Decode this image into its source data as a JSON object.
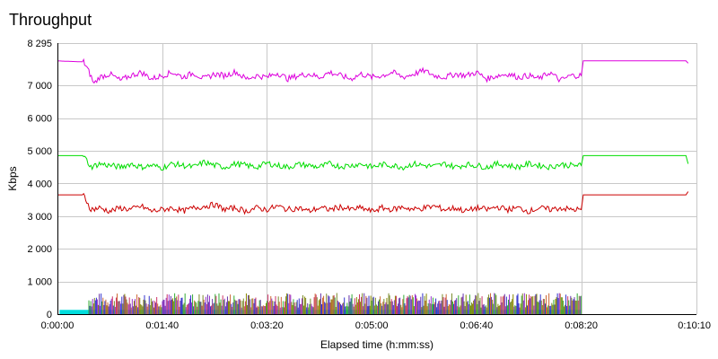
{
  "chart_data": {
    "type": "line",
    "title": "Throughput",
    "xlabel": "Elapsed time (h:mm:ss)",
    "ylabel": "Kbps",
    "x_unit": "seconds",
    "xlim": [
      0,
      610
    ],
    "ylim": [
      0,
      8295
    ],
    "x_ticks": [
      {
        "value": 0,
        "label": "0:00:00"
      },
      {
        "value": 100,
        "label": "0:01:40"
      },
      {
        "value": 200,
        "label": "0:03:20"
      },
      {
        "value": 300,
        "label": "0:05:00"
      },
      {
        "value": 400,
        "label": "0:06:40"
      },
      {
        "value": 500,
        "label": "0:08:20"
      },
      {
        "value": 610,
        "label": "0:10:10"
      }
    ],
    "y_ticks": [
      {
        "value": 0,
        "label": "0"
      },
      {
        "value": 1000,
        "label": "1 000"
      },
      {
        "value": 2000,
        "label": "2 000"
      },
      {
        "value": 3000,
        "label": "3 000"
      },
      {
        "value": 4000,
        "label": "4 000"
      },
      {
        "value": 5000,
        "label": "5 000"
      },
      {
        "value": 6000,
        "label": "6 000"
      },
      {
        "value": 7000,
        "label": "7 000"
      },
      {
        "value": 8295,
        "label": "8 295"
      }
    ],
    "grid": true,
    "legend": "none",
    "series": [
      {
        "color": "#dd00dd",
        "points": [
          [
            0,
            7750
          ],
          [
            25,
            7720
          ],
          [
            28,
            7550
          ],
          [
            31,
            7350
          ],
          [
            35,
            7050
          ],
          [
            40,
            7250
          ],
          [
            50,
            7350
          ],
          [
            60,
            7150
          ],
          [
            70,
            7300
          ],
          [
            80,
            7400
          ],
          [
            90,
            7200
          ],
          [
            100,
            7300
          ],
          [
            110,
            7400
          ],
          [
            120,
            7250
          ],
          [
            130,
            7380
          ],
          [
            140,
            7200
          ],
          [
            150,
            7350
          ],
          [
            160,
            7300
          ],
          [
            170,
            7420
          ],
          [
            180,
            7200
          ],
          [
            190,
            7300
          ],
          [
            200,
            7250
          ],
          [
            210,
            7380
          ],
          [
            220,
            7200
          ],
          [
            230,
            7300
          ],
          [
            240,
            7350
          ],
          [
            250,
            7250
          ],
          [
            260,
            7400
          ],
          [
            270,
            7300
          ],
          [
            280,
            7200
          ],
          [
            290,
            7350
          ],
          [
            300,
            7250
          ],
          [
            310,
            7300
          ],
          [
            320,
            7400
          ],
          [
            330,
            7250
          ],
          [
            340,
            7350
          ],
          [
            350,
            7450
          ],
          [
            360,
            7300
          ],
          [
            370,
            7250
          ],
          [
            380,
            7350
          ],
          [
            390,
            7300
          ],
          [
            400,
            7400
          ],
          [
            410,
            7200
          ],
          [
            420,
            7300
          ],
          [
            430,
            7350
          ],
          [
            440,
            7250
          ],
          [
            450,
            7300
          ],
          [
            460,
            7200
          ],
          [
            470,
            7400
          ],
          [
            480,
            7150
          ],
          [
            490,
            7300
          ],
          [
            500,
            7300
          ],
          [
            502,
            7750
          ],
          [
            600,
            7750
          ],
          [
            602,
            7680
          ]
        ]
      },
      {
        "color": "#00dd00",
        "points": [
          [
            0,
            4850
          ],
          [
            25,
            4850
          ],
          [
            28,
            4700
          ],
          [
            32,
            4500
          ],
          [
            40,
            4600
          ],
          [
            50,
            4550
          ],
          [
            60,
            4500
          ],
          [
            70,
            4600
          ],
          [
            80,
            4500
          ],
          [
            90,
            4550
          ],
          [
            100,
            4480
          ],
          [
            110,
            4600
          ],
          [
            120,
            4550
          ],
          [
            130,
            4500
          ],
          [
            140,
            4650
          ],
          [
            150,
            4550
          ],
          [
            160,
            4500
          ],
          [
            170,
            4600
          ],
          [
            180,
            4550
          ],
          [
            190,
            4500
          ],
          [
            200,
            4620
          ],
          [
            210,
            4550
          ],
          [
            220,
            4500
          ],
          [
            230,
            4580
          ],
          [
            240,
            4550
          ],
          [
            250,
            4500
          ],
          [
            260,
            4600
          ],
          [
            270,
            4520
          ],
          [
            280,
            4550
          ],
          [
            290,
            4600
          ],
          [
            300,
            4500
          ],
          [
            310,
            4580
          ],
          [
            320,
            4550
          ],
          [
            330,
            4500
          ],
          [
            340,
            4600
          ],
          [
            350,
            4550
          ],
          [
            360,
            4520
          ],
          [
            370,
            4600
          ],
          [
            380,
            4500
          ],
          [
            390,
            4580
          ],
          [
            400,
            4550
          ],
          [
            410,
            4500
          ],
          [
            420,
            4600
          ],
          [
            430,
            4550
          ],
          [
            440,
            4500
          ],
          [
            450,
            4600
          ],
          [
            460,
            4550
          ],
          [
            470,
            4500
          ],
          [
            480,
            4580
          ],
          [
            490,
            4550
          ],
          [
            500,
            4550
          ],
          [
            502,
            4850
          ],
          [
            600,
            4850
          ],
          [
            602,
            4600
          ]
        ]
      },
      {
        "color": "#cc0000",
        "points": [
          [
            0,
            3650
          ],
          [
            25,
            3650
          ],
          [
            28,
            3450
          ],
          [
            32,
            3200
          ],
          [
            40,
            3250
          ],
          [
            50,
            3150
          ],
          [
            60,
            3250
          ],
          [
            70,
            3200
          ],
          [
            80,
            3300
          ],
          [
            90,
            3150
          ],
          [
            100,
            3200
          ],
          [
            110,
            3250
          ],
          [
            120,
            3150
          ],
          [
            130,
            3250
          ],
          [
            140,
            3300
          ],
          [
            150,
            3350
          ],
          [
            160,
            3200
          ],
          [
            170,
            3250
          ],
          [
            180,
            3150
          ],
          [
            190,
            3250
          ],
          [
            200,
            3200
          ],
          [
            210,
            3300
          ],
          [
            220,
            3200
          ],
          [
            230,
            3250
          ],
          [
            240,
            3150
          ],
          [
            250,
            3250
          ],
          [
            260,
            3200
          ],
          [
            270,
            3280
          ],
          [
            280,
            3200
          ],
          [
            290,
            3250
          ],
          [
            300,
            3150
          ],
          [
            310,
            3250
          ],
          [
            320,
            3200
          ],
          [
            330,
            3280
          ],
          [
            340,
            3200
          ],
          [
            350,
            3250
          ],
          [
            360,
            3300
          ],
          [
            370,
            3200
          ],
          [
            380,
            3250
          ],
          [
            390,
            3150
          ],
          [
            400,
            3250
          ],
          [
            410,
            3200
          ],
          [
            420,
            3280
          ],
          [
            430,
            3200
          ],
          [
            440,
            3250
          ],
          [
            450,
            3150
          ],
          [
            460,
            3250
          ],
          [
            470,
            3200
          ],
          [
            480,
            3250
          ],
          [
            490,
            3200
          ],
          [
            500,
            3200
          ],
          [
            502,
            3650
          ],
          [
            600,
            3650
          ],
          [
            602,
            3750
          ]
        ]
      }
    ],
    "bursts": {
      "x_range": [
        30,
        500
      ],
      "ylim_max": 650,
      "colors": [
        "#7a8a2a",
        "#3333cc",
        "#cc6633",
        "#9933cc",
        "#33aa33",
        "#cc3366",
        "#888800",
        "#6633aa"
      ],
      "baseline_color": "#00dddd",
      "baseline_range": [
        2,
        500
      ],
      "baseline_value": 130
    }
  }
}
